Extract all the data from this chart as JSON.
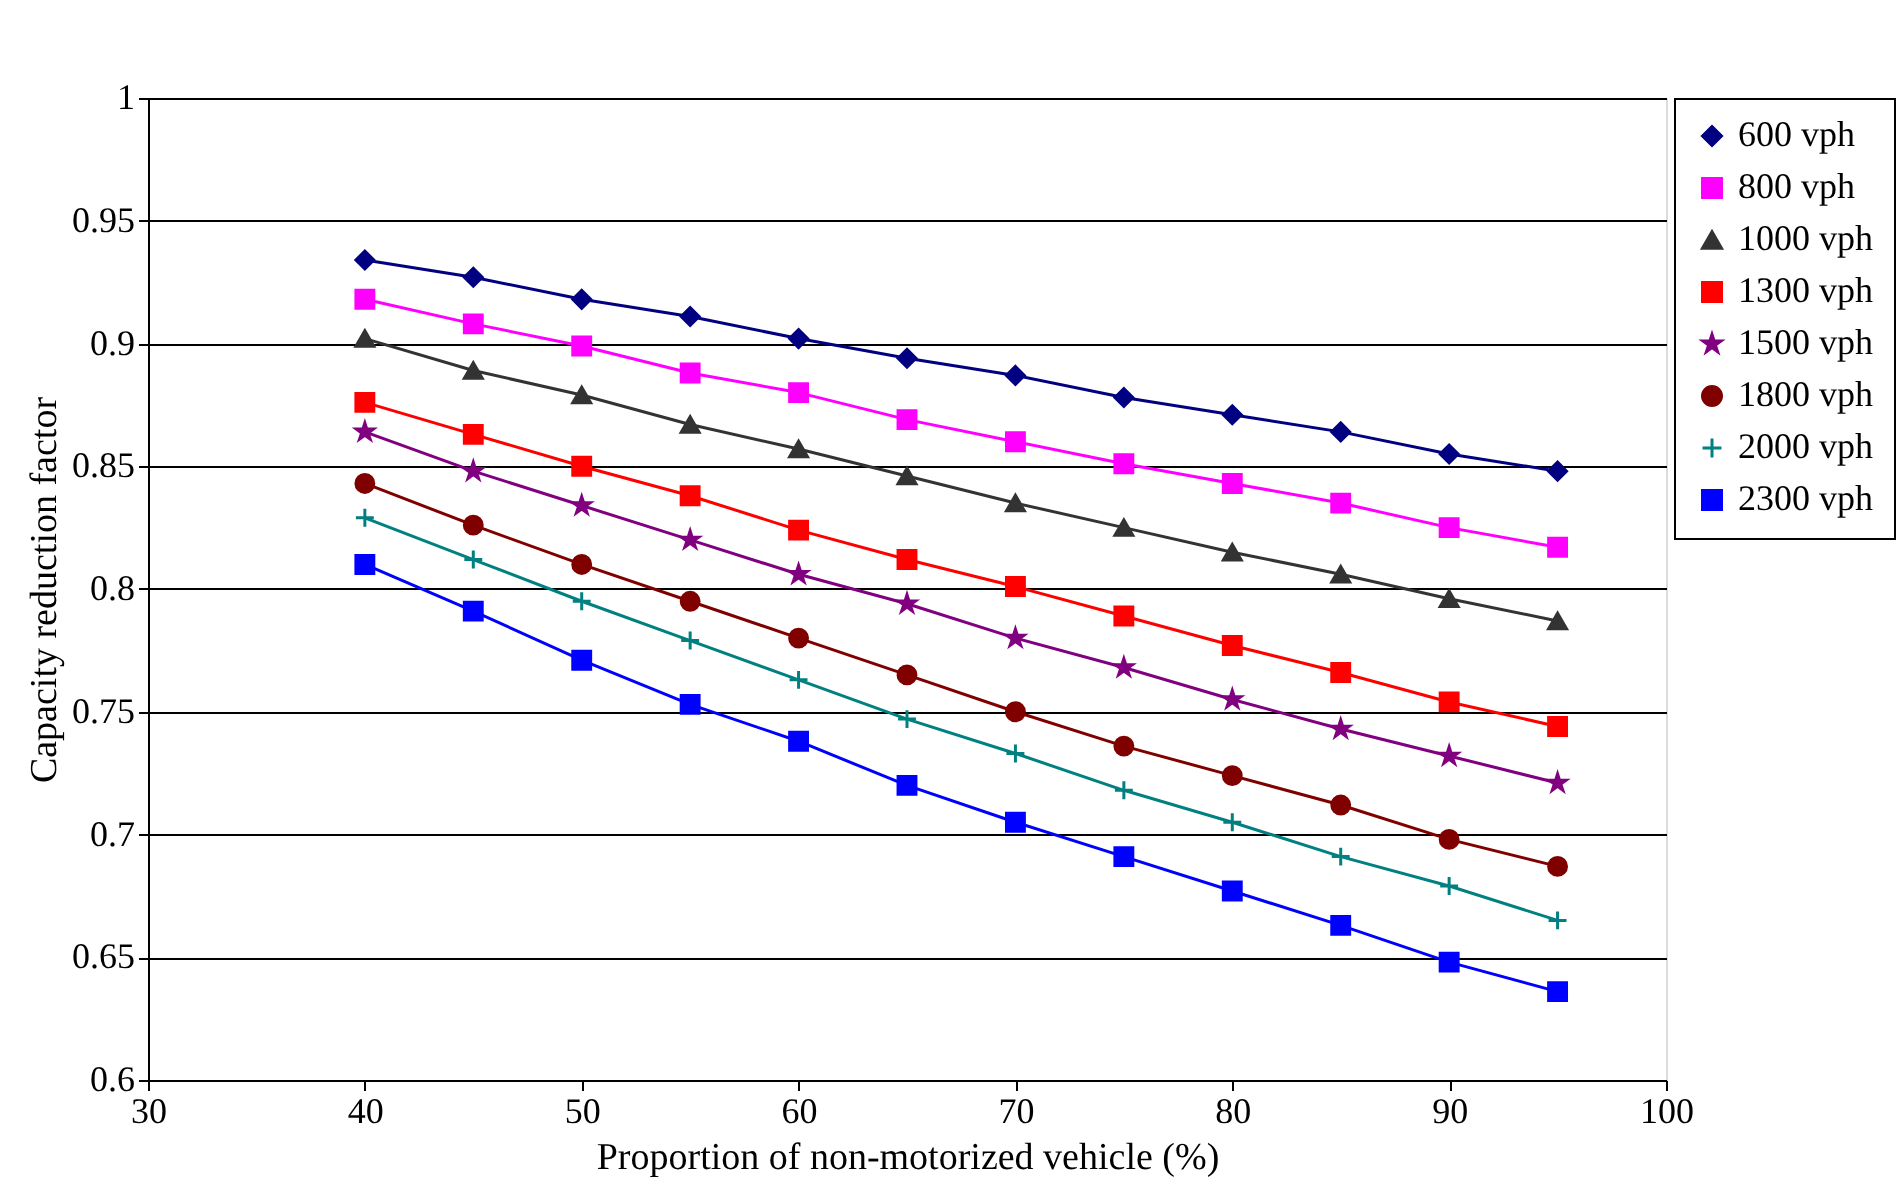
{
  "chart_data": {
    "type": "line",
    "xlabel": "Proportion of non-motorized vehicle (%)",
    "ylabel": "Capacity reduction factor",
    "x": [
      40,
      45,
      50,
      55,
      60,
      65,
      70,
      75,
      80,
      85,
      90,
      95
    ],
    "xlim": [
      30,
      100
    ],
    "xticks": [
      30,
      40,
      50,
      60,
      70,
      80,
      90,
      100
    ],
    "ylim": [
      0.6,
      1
    ],
    "yticks": [
      0.6,
      0.65,
      0.7,
      0.75,
      0.8,
      0.85,
      0.9,
      0.95,
      1
    ],
    "grid": "y",
    "legend": "right",
    "line_style": "solid",
    "series": [
      {
        "name": "600 vph",
        "color": "#000080",
        "marker": "diamond",
        "values": [
          0.934,
          0.927,
          0.918,
          0.911,
          0.902,
          0.894,
          0.887,
          0.878,
          0.871,
          0.864,
          0.855,
          0.848
        ]
      },
      {
        "name": "800 vph",
        "color": "#ff00ff",
        "marker": "square",
        "values": [
          0.918,
          0.908,
          0.899,
          0.888,
          0.88,
          0.869,
          0.86,
          0.851,
          0.843,
          0.835,
          0.825,
          0.817
        ]
      },
      {
        "name": "1000 vph",
        "color": "#333333",
        "marker": "triangle",
        "values": [
          0.902,
          0.889,
          0.879,
          0.867,
          0.857,
          0.846,
          0.835,
          0.825,
          0.815,
          0.806,
          0.796,
          0.787
        ]
      },
      {
        "name": "1300 vph",
        "color": "#ff0000",
        "marker": "square",
        "values": [
          0.876,
          0.863,
          0.85,
          0.838,
          0.824,
          0.812,
          0.801,
          0.789,
          0.777,
          0.766,
          0.754,
          0.744
        ]
      },
      {
        "name": "1500 vph",
        "color": "#800080",
        "marker": "star",
        "values": [
          0.864,
          0.848,
          0.834,
          0.82,
          0.806,
          0.794,
          0.78,
          0.768,
          0.755,
          0.743,
          0.732,
          0.721
        ]
      },
      {
        "name": "1800 vph",
        "color": "#800000",
        "marker": "circle",
        "values": [
          0.843,
          0.826,
          0.81,
          0.795,
          0.78,
          0.765,
          0.75,
          0.736,
          0.724,
          0.712,
          0.698,
          0.687
        ]
      },
      {
        "name": "2000 vph",
        "color": "#008080",
        "marker": "cross",
        "values": [
          0.829,
          0.812,
          0.795,
          0.779,
          0.763,
          0.747,
          0.733,
          0.718,
          0.705,
          0.691,
          0.679,
          0.665
        ]
      },
      {
        "name": "2300 vph",
        "color": "#0000ff",
        "marker": "square",
        "values": [
          0.81,
          0.791,
          0.771,
          0.753,
          0.738,
          0.72,
          0.705,
          0.691,
          0.677,
          0.663,
          0.648,
          0.636
        ]
      }
    ]
  }
}
